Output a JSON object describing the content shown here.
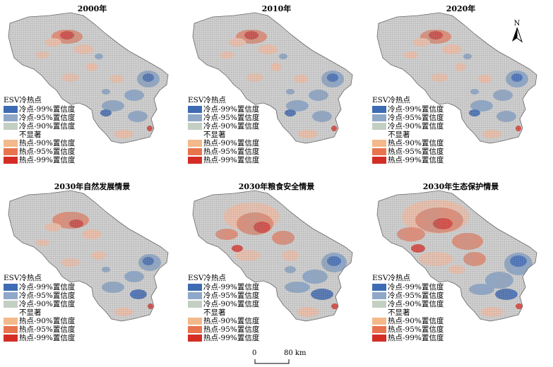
{
  "panels": [
    {
      "title": "2000年",
      "pattern": "base"
    },
    {
      "title": "2010年",
      "pattern": "base"
    },
    {
      "title": "2020年",
      "pattern": "base"
    },
    {
      "title": "2030年自然发展情景",
      "pattern": "natural"
    },
    {
      "title": "2030年粮食安全情景",
      "pattern": "food"
    },
    {
      "title": "2030年生态保护情景",
      "pattern": "eco"
    }
  ],
  "legend": {
    "title": "ESV冷热点",
    "items": [
      {
        "label": "冷点-99%置信度",
        "color": "#3e6cb4"
      },
      {
        "label": "冷点-95%置信度",
        "color": "#8fa8c8"
      },
      {
        "label": "冷点-90%置信度",
        "color": "#c4cfc4"
      },
      {
        "label": "不显著",
        "color": ""
      },
      {
        "label": "热点-90%置信度",
        "color": "#f3b98a"
      },
      {
        "label": "热点-95%置信度",
        "color": "#e8744e"
      },
      {
        "label": "热点-99%置信度",
        "color": "#d42d24"
      }
    ]
  },
  "north": {
    "label": "N"
  },
  "scale": {
    "start": "0",
    "end": "80 km"
  },
  "colors": {
    "grid": "#d2d2d2",
    "grid_line": "#9a9a9a",
    "cold99": "#4a72b8",
    "cold95": "#8fa8c8",
    "hot90": "#eec2ae",
    "hot95": "#e08f7a",
    "hot99": "#d24b45"
  }
}
